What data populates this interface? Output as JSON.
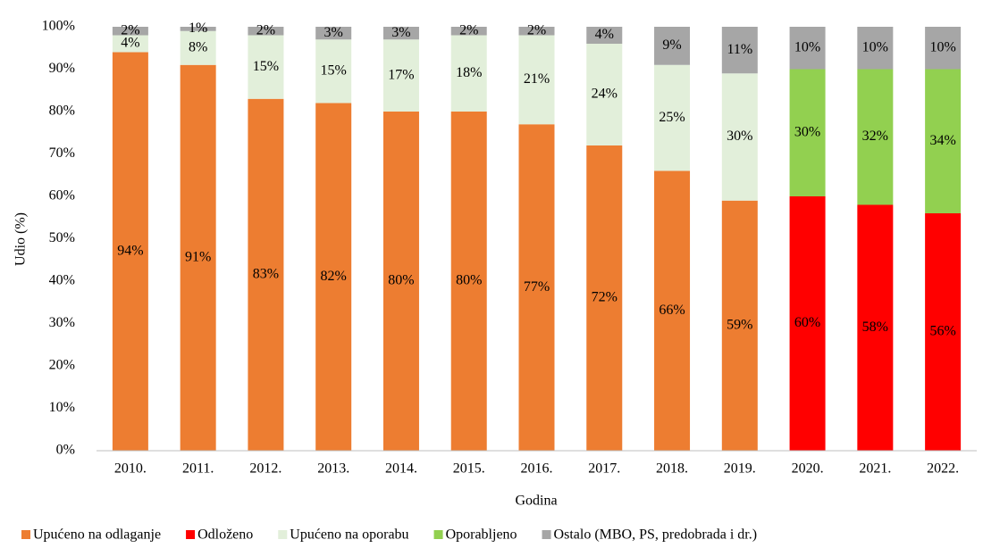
{
  "chart_data": {
    "type": "stacked-bar",
    "y_label": "Udio (%)",
    "x_label": "Godina",
    "categories": [
      "2010.",
      "2011.",
      "2012.",
      "2013.",
      "2014.",
      "2015.",
      "2016.",
      "2017.",
      "2018.",
      "2019.",
      "2020.",
      "2021.",
      "2022."
    ],
    "series": [
      {
        "name": "Upućeno na odlaganje",
        "color": "#ED7D31",
        "values": [
          94,
          91,
          83,
          82,
          80,
          80,
          77,
          72,
          66,
          59,
          null,
          null,
          null
        ],
        "value_labels": [
          "94%",
          "91%",
          "83%",
          "82%",
          "80%",
          "80%",
          "77%",
          "72%",
          "66%",
          "59%",
          null,
          null,
          null
        ]
      },
      {
        "name": "Odloženo",
        "color": "#FF0000",
        "values": [
          null,
          null,
          null,
          null,
          null,
          null,
          null,
          null,
          null,
          null,
          60,
          58,
          56
        ],
        "value_labels": [
          null,
          null,
          null,
          null,
          null,
          null,
          null,
          null,
          null,
          null,
          "60%",
          "58%",
          "56%"
        ]
      },
      {
        "name": "Upućeno na oporabu",
        "color": "#E2EFDA",
        "values": [
          4,
          8,
          15,
          15,
          17,
          18,
          21,
          24,
          25,
          30,
          null,
          null,
          null
        ],
        "value_labels": [
          "4%",
          "8%",
          "15%",
          "15%",
          "17%",
          "18%",
          "21%",
          "24%",
          "25%",
          "30%",
          null,
          null,
          null
        ]
      },
      {
        "name": "Oporabljeno",
        "color": "#92D050",
        "values": [
          null,
          null,
          null,
          null,
          null,
          null,
          null,
          null,
          null,
          null,
          30,
          32,
          34
        ],
        "value_labels": [
          null,
          null,
          null,
          null,
          null,
          null,
          null,
          null,
          null,
          null,
          "30%",
          "32%",
          "34%"
        ]
      },
      {
        "name": "Ostalo (MBO, PS, predobrada i dr.)",
        "color": "#A6A6A6",
        "values": [
          2,
          1,
          2,
          3,
          3,
          2,
          2,
          4,
          9,
          11,
          10,
          10,
          10
        ],
        "value_labels": [
          "2%",
          "1%",
          "2%",
          "3%",
          "3%",
          "2%",
          "2%",
          "4%",
          "9%",
          "11%",
          "10%",
          "10%",
          "10%"
        ]
      }
    ],
    "ylim": [
      0,
      100
    ],
    "yticks": [
      {
        "value": 0,
        "label": "0%"
      },
      {
        "value": 10,
        "label": "10%"
      },
      {
        "value": 20,
        "label": "20%"
      },
      {
        "value": 30,
        "label": "30%"
      },
      {
        "value": 40,
        "label": "40%"
      },
      {
        "value": 50,
        "label": "50%"
      },
      {
        "value": 60,
        "label": "60%"
      },
      {
        "value": 70,
        "label": "70%"
      },
      {
        "value": 80,
        "label": "80%"
      },
      {
        "value": 90,
        "label": "90%"
      },
      {
        "value": 100,
        "label": "100%"
      }
    ],
    "grid": false,
    "legend": "bottom"
  }
}
